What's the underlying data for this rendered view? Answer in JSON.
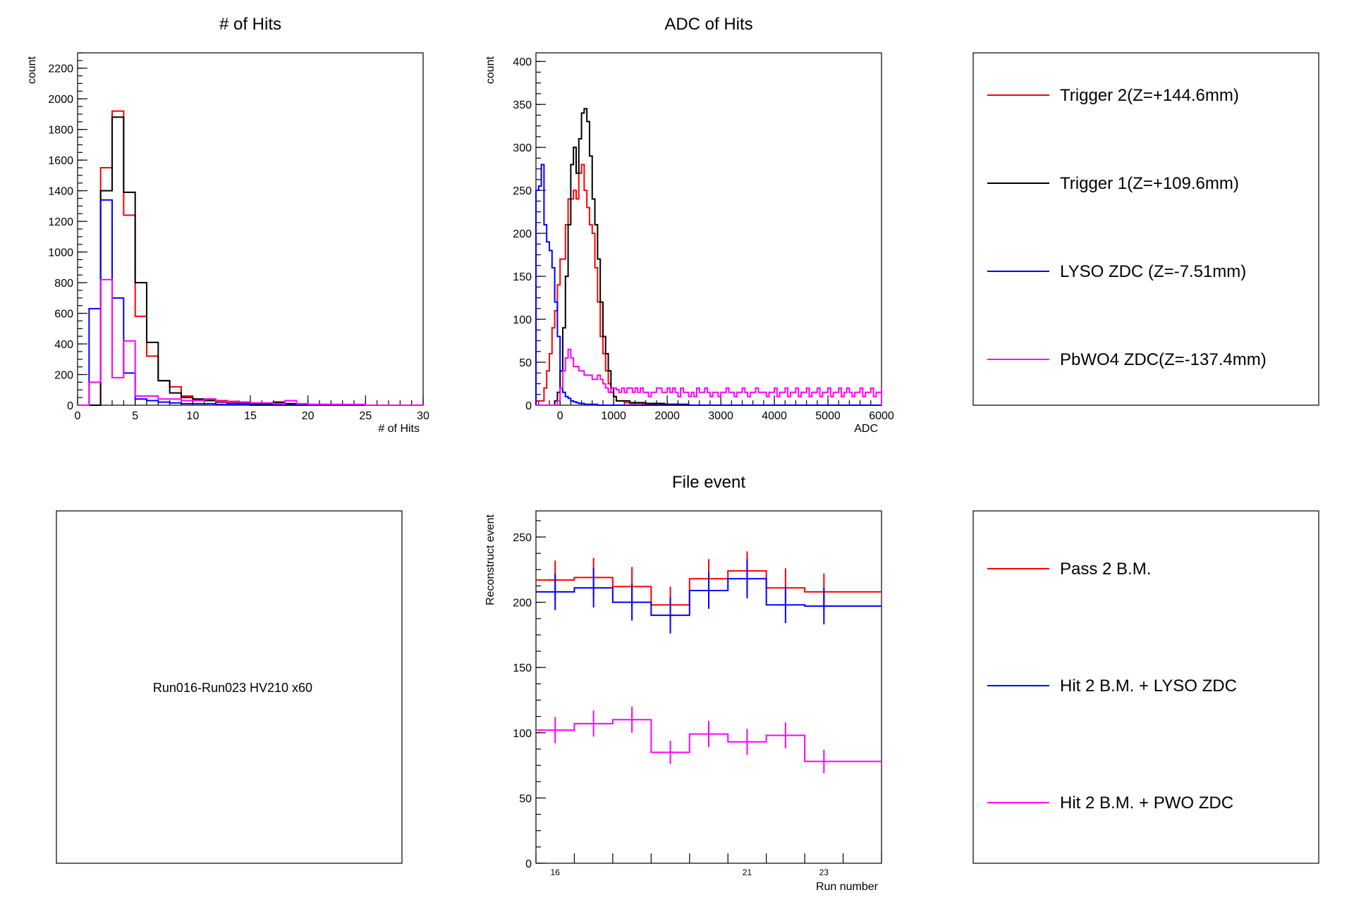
{
  "colors": {
    "red": "#ff0000",
    "black": "#000000",
    "blue": "#0000ff",
    "magenta": "#ff00ff"
  },
  "chart_data": [
    {
      "type": "histogram",
      "title": "# of Hits",
      "xlabel": "# of Hits",
      "ylabel": "count",
      "xlim": [
        0,
        30
      ],
      "ylim": [
        0,
        2300
      ],
      "xticks": [
        0,
        5,
        10,
        15,
        20,
        25,
        30
      ],
      "yticks": [
        0,
        200,
        400,
        600,
        800,
        1000,
        1200,
        1400,
        1600,
        1800,
        2000,
        2200
      ],
      "bin_edges": [
        0,
        1,
        2,
        3,
        4,
        5,
        6,
        7,
        8,
        9,
        10,
        11,
        12,
        13,
        14,
        15,
        16,
        17,
        18,
        19,
        20,
        21,
        22,
        23,
        24,
        25,
        26,
        27,
        28,
        29,
        30
      ],
      "series": [
        {
          "name": "Trigger 2(Z=+144.6mm)",
          "color": "red",
          "values": [
            0,
            0,
            1550,
            1920,
            1240,
            580,
            320,
            160,
            120,
            60,
            40,
            40,
            30,
            25,
            20,
            10,
            10,
            15,
            10,
            5,
            5,
            5,
            5,
            0,
            0,
            0,
            0,
            0,
            0,
            0
          ]
        },
        {
          "name": "Trigger 1(Z=+109.6mm)",
          "color": "black",
          "values": [
            0,
            0,
            1400,
            1880,
            1390,
            800,
            410,
            160,
            80,
            50,
            40,
            30,
            20,
            15,
            15,
            10,
            10,
            20,
            10,
            5,
            5,
            5,
            0,
            0,
            0,
            0,
            0,
            0,
            0,
            0
          ]
        },
        {
          "name": "LYSO ZDC (Z=-7.51mm)",
          "color": "blue",
          "values": [
            0,
            630,
            1340,
            700,
            210,
            40,
            30,
            20,
            15,
            10,
            10,
            10,
            5,
            5,
            5,
            0,
            0,
            0,
            0,
            0,
            0,
            0,
            0,
            0,
            0,
            0,
            0,
            0,
            0,
            0
          ]
        },
        {
          "name": "PbWO4 ZDC(Z=-137.4mm)",
          "color": "magenta",
          "values": [
            0,
            150,
            820,
            180,
            420,
            60,
            60,
            40,
            40,
            30,
            30,
            40,
            25,
            20,
            20,
            15,
            15,
            10,
            30,
            10,
            5,
            5,
            5,
            5,
            5,
            0,
            0,
            0,
            0,
            0
          ]
        }
      ]
    },
    {
      "type": "histogram",
      "title": "ADC of Hits",
      "xlabel": "ADC",
      "ylabel": "count",
      "xlim": [
        -450,
        6000
      ],
      "ylim": [
        0,
        410
      ],
      "xticks": [
        0,
        1000,
        2000,
        3000,
        4000,
        5000,
        6000
      ],
      "yticks": [
        0,
        50,
        100,
        150,
        200,
        250,
        300,
        350,
        400
      ],
      "bin_start": -450,
      "bin_width": 50,
      "series": [
        {
          "name": "Trigger 2(Z=+144.6mm)",
          "color": "red",
          "values": [
            5,
            5,
            5,
            20,
            40,
            60,
            90,
            110,
            140,
            170,
            170,
            210,
            240,
            240,
            250,
            240,
            270,
            280,
            250,
            230,
            210,
            200,
            160,
            120,
            80,
            60,
            40,
            25,
            15,
            10,
            5,
            5,
            5,
            3,
            3,
            2,
            2,
            2,
            2,
            2,
            1,
            1,
            1,
            1,
            1,
            1,
            1,
            1,
            1,
            1,
            1,
            1,
            1,
            0,
            0,
            0,
            0,
            0,
            0,
            0,
            0,
            0,
            0,
            0,
            0,
            0,
            0,
            0,
            0,
            0,
            0,
            0,
            0,
            0,
            0,
            0,
            0,
            0,
            0,
            0,
            0,
            0,
            0,
            0,
            0,
            0,
            0,
            0,
            0,
            0,
            0,
            0,
            0,
            0,
            0,
            0,
            0,
            0,
            0,
            0,
            0,
            0,
            0,
            0,
            0,
            0,
            0,
            0,
            0,
            0,
            0,
            0,
            0,
            0,
            0,
            0,
            0,
            0,
            0,
            0,
            0,
            0,
            0,
            0,
            0,
            0,
            0,
            0,
            0,
            0
          ]
        },
        {
          "name": "Trigger 1(Z=+109.6mm)",
          "color": "black",
          "values": [
            0,
            0,
            0,
            0,
            0,
            0,
            0,
            5,
            15,
            40,
            90,
            150,
            210,
            280,
            300,
            270,
            310,
            340,
            345,
            330,
            290,
            240,
            210,
            170,
            120,
            80,
            60,
            40,
            20,
            10,
            5,
            5,
            5,
            5,
            5,
            3,
            3,
            3,
            3,
            3,
            3,
            2,
            2,
            2,
            2,
            2,
            2,
            2,
            1,
            1,
            1,
            1,
            1,
            1,
            1,
            1,
            1,
            0,
            0,
            0,
            0,
            0,
            0,
            0,
            0,
            0,
            0,
            0,
            0,
            0,
            0,
            0,
            0,
            0,
            0,
            0,
            0,
            0,
            0,
            0,
            0,
            0,
            0,
            0,
            0,
            0,
            0,
            0,
            0,
            0,
            0,
            0,
            0,
            0,
            0,
            0,
            0,
            0,
            0,
            0,
            0,
            0,
            0,
            0,
            0,
            0,
            0,
            0,
            0,
            0,
            0,
            0,
            0,
            0,
            0,
            0,
            0,
            0,
            0,
            0,
            0,
            0,
            0,
            0,
            0,
            0,
            0,
            0,
            0,
            0,
            0,
            0
          ]
        },
        {
          "name": "LYSO ZDC (Z=-7.51mm)",
          "color": "blue",
          "values": [
            250,
            255,
            280,
            210,
            190,
            180,
            160,
            120,
            80,
            40,
            15,
            10,
            8,
            5,
            4,
            3,
            2,
            2,
            1,
            1,
            1,
            1,
            1,
            0,
            0,
            0,
            0,
            0,
            0,
            0,
            0,
            0,
            0,
            0,
            0,
            0,
            0,
            0,
            0,
            0,
            0,
            0,
            0,
            0,
            0,
            0,
            0,
            0,
            0,
            0,
            0,
            0,
            0,
            0,
            0,
            0,
            0,
            0,
            0,
            0,
            0,
            0,
            0,
            0,
            0,
            0,
            0,
            0,
            0,
            0,
            0,
            0,
            0,
            0,
            0,
            0,
            0,
            0,
            0,
            0,
            0,
            0,
            0,
            0,
            0,
            0,
            0,
            0,
            0,
            0,
            0,
            0,
            0,
            0,
            0,
            0,
            0,
            0,
            0,
            0,
            0,
            0,
            0,
            0,
            0,
            0,
            0,
            0,
            0,
            0,
            0,
            0,
            0,
            0,
            0,
            0,
            0,
            0,
            0,
            0,
            0,
            0,
            0,
            0,
            0,
            0,
            0,
            0,
            0,
            0,
            0,
            0,
            0,
            0
          ]
        },
        {
          "name": "PbWO4 ZDC(Z=-137.4mm)",
          "color": "magenta",
          "values": [
            0,
            0,
            0,
            0,
            0,
            0,
            0,
            0,
            5,
            20,
            40,
            55,
            65,
            55,
            45,
            45,
            40,
            40,
            35,
            35,
            35,
            30,
            30,
            35,
            30,
            25,
            20,
            15,
            20,
            20,
            18,
            15,
            20,
            15,
            20,
            20,
            15,
            20,
            15,
            20,
            15,
            15,
            10,
            15,
            15,
            20,
            20,
            15,
            15,
            20,
            15,
            20,
            15,
            10,
            20,
            15,
            15,
            10,
            15,
            10,
            20,
            15,
            15,
            20,
            15,
            10,
            15,
            15,
            10,
            15,
            15,
            20,
            15,
            15,
            10,
            15,
            15,
            20,
            15,
            10,
            15,
            15,
            20,
            15,
            15,
            15,
            10,
            15,
            15,
            20,
            10,
            15,
            15,
            20,
            10,
            15,
            15,
            20,
            10,
            15,
            15,
            20,
            10,
            15,
            15,
            20,
            10,
            15,
            15,
            20,
            10,
            15,
            15,
            20,
            10,
            15,
            20,
            15,
            10,
            15,
            15,
            20,
            10,
            15,
            15,
            20,
            10,
            15,
            15,
            20
          ]
        }
      ]
    },
    {
      "type": "step",
      "title": "File event",
      "xlabel": "Run number",
      "ylabel": "Reconstruct event",
      "xlim": [
        15.5,
        24.5
      ],
      "ylim": [
        0,
        270
      ],
      "xticklabels": [
        {
          "x": 16,
          "label": "16"
        },
        {
          "x": 21,
          "label": "21"
        },
        {
          "x": 23,
          "label": "23"
        }
      ],
      "yticks": [
        0,
        50,
        100,
        150,
        200,
        250
      ],
      "x": [
        16,
        17,
        18,
        19,
        20,
        21,
        22,
        23
      ],
      "series": [
        {
          "name": "Pass 2 B.M.",
          "color": "red",
          "values": [
            217,
            219,
            212,
            198,
            218,
            224,
            211,
            208
          ],
          "errors": [
            15,
            15,
            15,
            14,
            15,
            15,
            15,
            14
          ]
        },
        {
          "name": "Hit 2 B.M. + LYSO ZDC",
          "color": "blue",
          "values": [
            208,
            211,
            200,
            190,
            209,
            218,
            198,
            197
          ],
          "errors": [
            14,
            15,
            14,
            14,
            14,
            15,
            14,
            14
          ]
        },
        {
          "name": "Hit 2 B.M. + PWO ZDC",
          "color": "magenta",
          "values": [
            102,
            107,
            110,
            85,
            99,
            93,
            98,
            78
          ],
          "errors": [
            10,
            10,
            10,
            9,
            10,
            10,
            10,
            9
          ]
        }
      ]
    }
  ],
  "legend_top": [
    {
      "label": "Trigger 2(Z=+144.6mm)",
      "color": "red"
    },
    {
      "label": "Trigger 1(Z=+109.6mm)",
      "color": "black"
    },
    {
      "label": "LYSO ZDC (Z=-7.51mm)",
      "color": "blue"
    },
    {
      "label": "PbWO4 ZDC(Z=-137.4mm)",
      "color": "magenta"
    }
  ],
  "legend_bottom": [
    {
      "label": "Pass 2 B.M.",
      "color": "red"
    },
    {
      "label": "Hit 2 B.M. + LYSO ZDC",
      "color": "blue"
    },
    {
      "label": "Hit 2 B.M. + PWO ZDC",
      "color": "magenta"
    }
  ],
  "info_panel": {
    "text": "Run016-Run023 HV210 x60"
  }
}
